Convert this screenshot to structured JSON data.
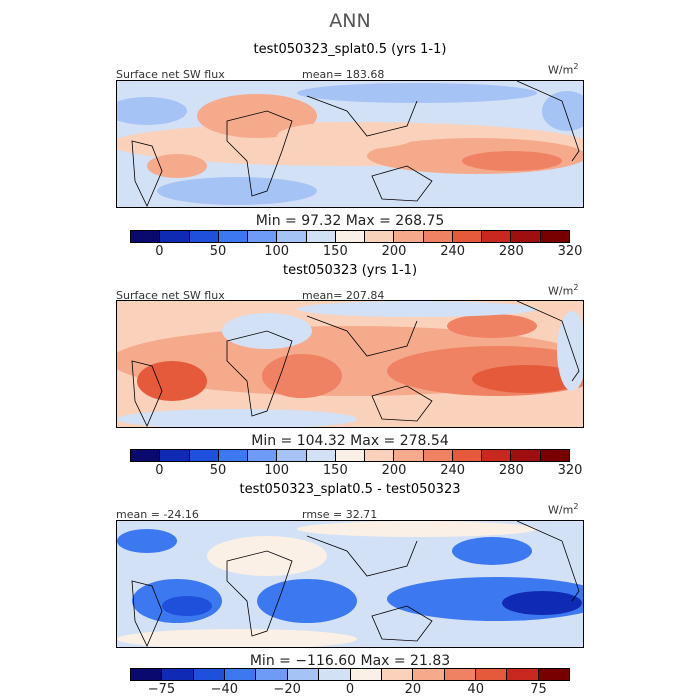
{
  "main_title": "ANN",
  "units": "W/m",
  "units_exp": "2",
  "colors": {
    "abs": [
      "#0a0a6e",
      "#0f2ab4",
      "#1e50dc",
      "#3c78f0",
      "#6e9bf5",
      "#a5c3f5",
      "#d2e1f5",
      "#faf0e6",
      "#fad2bc",
      "#f5aa8c",
      "#f08264",
      "#e65a3c",
      "#c8281e",
      "#a00f0f",
      "#780000"
    ],
    "diff": [
      "#0a0a6e",
      "#0f2ab4",
      "#1e50dc",
      "#3c78f0",
      "#6e9bf5",
      "#a5c3f5",
      "#d2e1f5",
      "#faf0e6",
      "#fad2bc",
      "#f5aa8c",
      "#f08264",
      "#e65a3c",
      "#c8281e",
      "#780000"
    ]
  },
  "chart_data": [
    {
      "type": "heatmap",
      "title": "test050323_splat0.5 (yrs 1-1)",
      "variable": "Surface net SW flux",
      "mean_text": "mean= 183.68",
      "minmax_text": "Min =  97.32  Max = 268.75",
      "colorbar_ticks": [
        "0",
        "50",
        "100",
        "150",
        "200",
        "240",
        "280",
        "320"
      ],
      "min": 97.32,
      "max": 268.75,
      "mean": 183.68
    },
    {
      "type": "heatmap",
      "title": "test050323 (yrs 1-1)",
      "variable": "Surface net SW flux",
      "mean_text": "mean= 207.84",
      "minmax_text": "Min = 104.32  Max = 278.54",
      "colorbar_ticks": [
        "0",
        "50",
        "100",
        "150",
        "200",
        "240",
        "280",
        "320"
      ],
      "min": 104.32,
      "max": 278.54,
      "mean": 207.84
    },
    {
      "type": "heatmap",
      "title": "test050323_splat0.5 - test050323",
      "mean_text": "mean = -24.16",
      "rmse_text": "rmse =  32.71",
      "minmax_text": "Min = −116.60  Max =  21.83",
      "colorbar_ticks": [
        "−75",
        "−40",
        "−20",
        "0",
        "20",
        "40",
        "75"
      ],
      "min": -116.6,
      "max": 21.83,
      "mean": -24.16,
      "rmse": 32.71
    }
  ]
}
